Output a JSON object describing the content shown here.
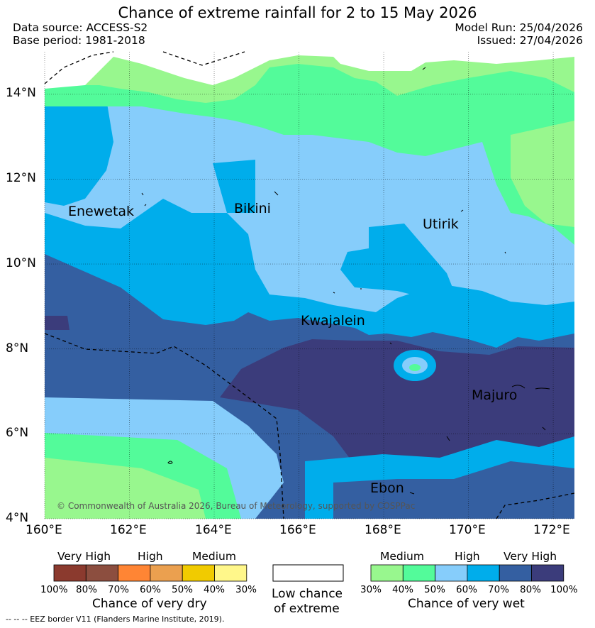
{
  "title": "Chance of extreme rainfall for 2 to 15 May 2026",
  "header": {
    "data_source": "Data source: ACCESS-S2",
    "base_period": "Base period: 1981-2018",
    "model_run": "Model Run: 25/04/2026",
    "issued": "Issued: 27/04/2026"
  },
  "map": {
    "lon_range": [
      160,
      172.5
    ],
    "lat_range": [
      4,
      15
    ],
    "lon_ticks": [
      "160°E",
      "162°E",
      "164°E",
      "166°E",
      "168°E",
      "170°E",
      "172°E"
    ],
    "lat_ticks": [
      "4°N",
      "6°N",
      "8°N",
      "10°N",
      "12°N",
      "14°N"
    ],
    "places": [
      "Enewetak",
      "Bikini",
      "Utirik",
      "Kwajalein",
      "Majuro",
      "Ebon"
    ],
    "copyright": "© Commonwealth of Australia 2026, Bureau of Meteorology, supported by COSPPac"
  },
  "legend": {
    "dry": {
      "headers": [
        "Very High",
        "High",
        "Medium"
      ],
      "ticks": [
        "100%",
        "80%",
        "70%",
        "60%",
        "50%",
        "40%",
        "30%"
      ],
      "colors": [
        "#8b3a2e",
        "#8c4e3f",
        "#ff8534",
        "#eba04f",
        "#f1cb00",
        "#fff78a"
      ],
      "caption": "Chance of very dry"
    },
    "neutral": {
      "caption_line1": "Low chance",
      "caption_line2": "of extreme",
      "color": "#ffffff"
    },
    "wet": {
      "headers": [
        "Medium",
        "High",
        "Very High"
      ],
      "ticks": [
        "30%",
        "40%",
        "50%",
        "60%",
        "70%",
        "80%",
        "100%"
      ],
      "colors": [
        "#98f78e",
        "#53fb9a",
        "#86cdfb",
        "#00adeb",
        "#345fa1",
        "#3b3c7b"
      ],
      "caption": "Chance of very wet"
    }
  },
  "footnote": "--  --  -- EEZ border V11 (Flanders Marine Institute, 2019)."
}
